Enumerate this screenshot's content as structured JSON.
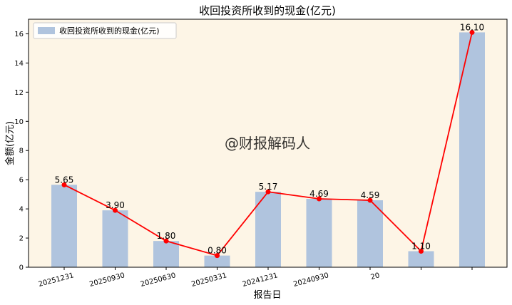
{
  "chart_data": {
    "type": "bar",
    "title": "收回投资所收到的现金(亿元)",
    "xlabel": "报告日",
    "ylabel": "金额(亿元)",
    "categories": [
      "20251231",
      "20250930",
      "20250630",
      "20250331",
      "20241231",
      "20240930",
      "20",
      "",
      ""
    ],
    "series": [
      {
        "name": "收回投资所收到的现金(亿元)",
        "values": [
          5.65,
          3.9,
          1.8,
          0.8,
          5.17,
          4.69,
          4.59,
          1.1,
          16.1
        ]
      }
    ],
    "data_labels": [
      "5.65",
      "3.90",
      "1.80",
      "0.80",
      "5.17",
      "4.69",
      "4.59",
      "1.10",
      "16.10"
    ],
    "ylim": [
      0,
      17
    ],
    "yticks": [
      0,
      2,
      4,
      6,
      8,
      10,
      12,
      14,
      16
    ],
    "legend": "top-left",
    "grid": false,
    "watermark": "@财报解码人",
    "colors": {
      "bar": "#b0c4de",
      "line": "#ff0000",
      "plot_bg": "#fdf5e6"
    }
  }
}
